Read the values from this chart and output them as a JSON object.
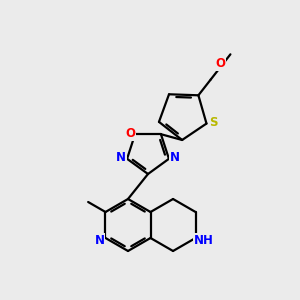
{
  "background_color": "#ebebeb",
  "bond_color": "#000000",
  "atom_colors": {
    "N": "#0000ff",
    "O": "#ff0000",
    "S": "#b8b800",
    "C": "#000000",
    "H": "#000000"
  },
  "title": "",
  "figsize": [
    3.0,
    3.0
  ],
  "dpi": 100
}
